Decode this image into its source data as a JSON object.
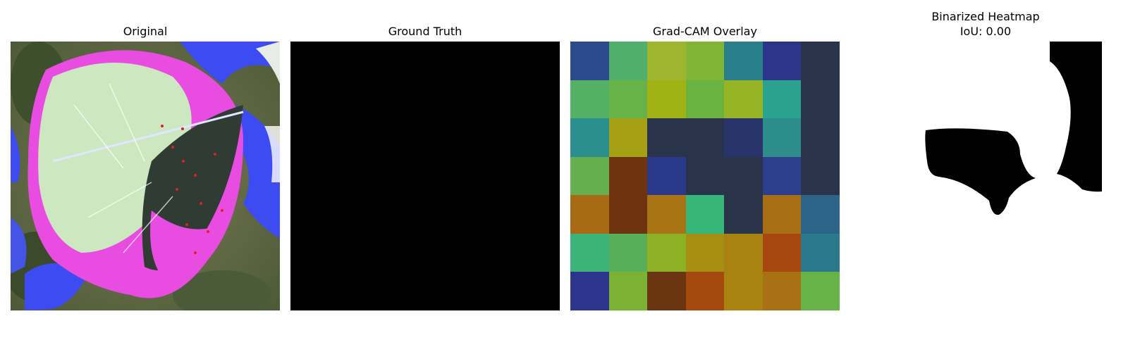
{
  "panels": {
    "original": {
      "title": "Original"
    },
    "ground_truth": {
      "title": "Ground Truth"
    },
    "gradcam": {
      "title": "Grad-CAM Overlay",
      "grid_colors": [
        [
          "#2c4a8e",
          "#4eb06a",
          "#9fb52e",
          "#80b535",
          "#297f8c",
          "#2b368a",
          "#2a344b"
        ],
        [
          "#54b064",
          "#68b24a",
          "#a0b214",
          "#6ab341",
          "#96b423",
          "#2aa28e",
          "#2a354b"
        ],
        [
          "#2b8e8f",
          "#a6a015",
          "#29344b",
          "#29344b",
          "#29346a",
          "#2c8d8a",
          "#29344b"
        ],
        [
          "#64b050",
          "#6f340f",
          "#2b398c",
          "#29344b",
          "#29344b",
          "#2b3f8d",
          "#29344b"
        ],
        [
          "#a86a14",
          "#6e330f",
          "#a87414",
          "#36b678",
          "#29344b",
          "#a86e14",
          "#2c6489"
        ],
        [
          "#3bb47a",
          "#56b05a",
          "#8db125",
          "#a68e12",
          "#a88312",
          "#a6470f",
          "#2a7a8c"
        ],
        [
          "#2c348b",
          "#7cb233",
          "#6a3510",
          "#a6490f",
          "#a88312",
          "#a87114",
          "#66b348"
        ]
      ]
    },
    "binarized": {
      "title_line1": "Binarized Heatmap",
      "title_line2": "IoU: 0.00"
    }
  }
}
